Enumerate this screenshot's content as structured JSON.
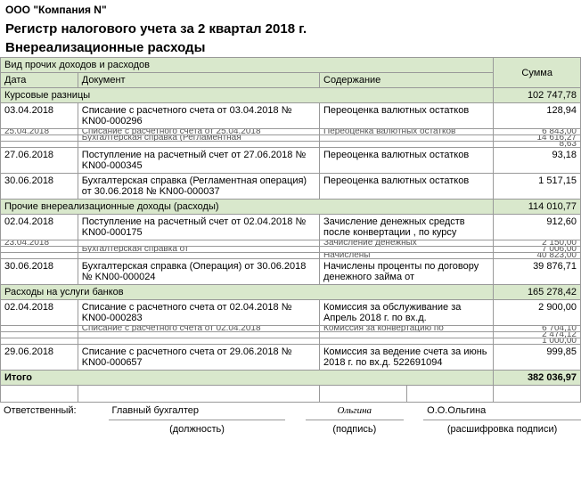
{
  "company": "ООО \"Компания N\"",
  "title1": "Регистр налогового учета за 2 квартал 2018 г.",
  "title2": "Внереализационные расходы",
  "headers": {
    "group_header": "Вид прочих доходов и расходов",
    "date": "Дата",
    "doc": "Документ",
    "desc": "Содержание",
    "sum": "Сумма"
  },
  "groups": [
    {
      "name": "Курсовые разницы",
      "sum": "102 747,78",
      "rows": [
        {
          "date": "03.04.2018",
          "doc": "Списание с расчетного счета от 03.04.2018 № KN00-000296",
          "desc": "Переоценка валютных остатков",
          "sum": "128,94",
          "h": 2
        },
        {
          "date": "25.04.2018",
          "doc": "Списание с расчетного счета от 25.04.2018",
          "desc": "Переоценка валютных остатков",
          "sum": "6 843,00",
          "h": 1
        },
        {
          "date": "",
          "doc": "Бухгалтерская справка (Регламентная",
          "desc": "",
          "sum": "14 616,27",
          "h": 1
        },
        {
          "date": "",
          "doc": "",
          "desc": "",
          "sum": "8,63",
          "h": 1
        },
        {
          "date": "27.06.2018",
          "doc": "Поступление на расчетный счет от 27.06.2018 № KN00-000345",
          "desc": "Переоценка валютных остатков",
          "sum": "93,18",
          "h": 2
        },
        {
          "date": "30.06.2018",
          "doc": "Бухгалтерская справка (Регламентная операция) от 30.06.2018 № KN00-000037",
          "desc": "Переоценка валютных остатков",
          "sum": "1 517,15",
          "h": 2
        }
      ]
    },
    {
      "name": "Прочие внереализационные доходы (расходы)",
      "sum": "114 010,77",
      "rows": [
        {
          "date": "02.04.2018",
          "doc": "Поступление на расчетный счет от 02.04.2018 № KN00-000175",
          "desc": "Зачисление денежных средств после конвертации , по курсу",
          "sum": "912,60",
          "h": 2
        },
        {
          "date": "23.04.2018",
          "doc": "",
          "desc": "Зачисление денежных",
          "sum": "2 150,00",
          "h": 1
        },
        {
          "date": "",
          "doc": "Бухгалтерская справка от",
          "desc": "",
          "sum": "7 006,00",
          "h": 1
        },
        {
          "date": "",
          "doc": "",
          "desc": "Начислены",
          "sum": "40 823,00",
          "h": 1
        },
        {
          "date": "30.06.2018",
          "doc": "Бухгалтерская справка (Операция) от 30.06.2018 № KN00-000024",
          "desc": "Начислены проценты по договору денежного займа от",
          "sum": "39 876,71",
          "h": 2
        }
      ]
    },
    {
      "name": "Расходы на услуги банков",
      "sum": "165 278,42",
      "rows": [
        {
          "date": "02.04.2018",
          "doc": "Списание с расчетного счета от 02.04.2018 № KN00-000283",
          "desc": "Комиссия за обслуживание за Апрель 2018 г. по вх.д.",
          "sum": "2 900,00",
          "h": 2
        },
        {
          "date": "",
          "doc": "Списание с расчетного счета от 02.04.2018",
          "desc": "Комиссия за конвертацию по",
          "sum": "6 704,10",
          "h": 1
        },
        {
          "date": "",
          "doc": "",
          "desc": "",
          "sum": "2 474,12",
          "h": 1
        },
        {
          "date": "",
          "doc": "",
          "desc": "",
          "sum": "1 000,00",
          "h": 1
        },
        {
          "date": "29.06.2018",
          "doc": "Списание с расчетного счета от 29.06.2018 № KN00-000657",
          "desc": "Комиссия за ведение счета за июнь 2018 г. по вх.д. 522691094",
          "sum": "999,85",
          "h": 2
        }
      ]
    }
  ],
  "total_label": "Итого",
  "total_sum": "382 036,97",
  "sig": {
    "resp": "Ответственный:",
    "pos": "Главный бухгалтер",
    "pos_label": "(должность)",
    "sign": "Ольгина",
    "sign_label": "(подпись)",
    "name": "О.О.Ольгина",
    "name_label": "(расшифровка подписи)"
  }
}
